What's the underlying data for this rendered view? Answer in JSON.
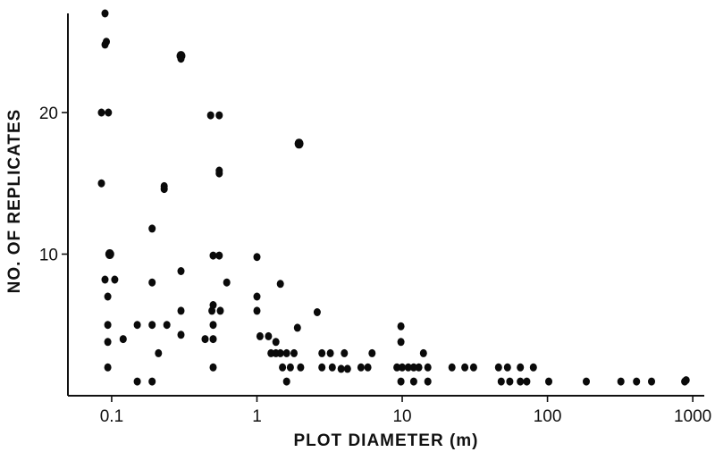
{
  "chart_data": {
    "type": "scatter",
    "xlabel": "PLOT DIAMETER (m)",
    "ylabel": "NO. OF REPLICATES",
    "x_scale": "log",
    "xlim": [
      0.05,
      1200
    ],
    "ylim": [
      0,
      27
    ],
    "x_ticks": [
      {
        "value": 0.1,
        "label": "0.1"
      },
      {
        "value": 1,
        "label": "1"
      },
      {
        "value": 10,
        "label": "10"
      },
      {
        "value": 100,
        "label": "100"
      },
      {
        "value": 1000,
        "label": "1000"
      }
    ],
    "y_ticks": [
      {
        "value": 10,
        "label": "10"
      },
      {
        "value": 20,
        "label": "20"
      }
    ],
    "grid": false,
    "points": [
      [
        0.09,
        27
      ],
      [
        0.092,
        25
      ],
      [
        0.09,
        24.8
      ],
      [
        0.3,
        24
      ],
      [
        0.3,
        23.8
      ],
      [
        0.085,
        20
      ],
      [
        0.095,
        20
      ],
      [
        0.48,
        19.8
      ],
      [
        0.55,
        19.8
      ],
      [
        1.95,
        17.8
      ],
      [
        0.55,
        15.9
      ],
      [
        0.55,
        15.7
      ],
      [
        0.085,
        15
      ],
      [
        0.23,
        14.8
      ],
      [
        0.23,
        14.6
      ],
      [
        0.19,
        11.8
      ],
      [
        0.097,
        10
      ],
      [
        0.5,
        9.9
      ],
      [
        0.55,
        9.9
      ],
      [
        1.0,
        9.8
      ],
      [
        0.3,
        8.8
      ],
      [
        0.09,
        8.2
      ],
      [
        0.105,
        8.2
      ],
      [
        0.19,
        8.0
      ],
      [
        0.62,
        8.0
      ],
      [
        1.45,
        7.9
      ],
      [
        0.094,
        7.0
      ],
      [
        1.0,
        7.0
      ],
      [
        0.5,
        6.4
      ],
      [
        0.49,
        6.0
      ],
      [
        0.56,
        6.0
      ],
      [
        0.3,
        6.0
      ],
      [
        1.0,
        6.0
      ],
      [
        2.6,
        5.9
      ],
      [
        0.094,
        5.0
      ],
      [
        0.15,
        5.0
      ],
      [
        0.19,
        5.0
      ],
      [
        0.24,
        5.0
      ],
      [
        0.5,
        5.0
      ],
      [
        1.9,
        4.8
      ],
      [
        9.8,
        4.9
      ],
      [
        0.3,
        4.3
      ],
      [
        1.05,
        4.2
      ],
      [
        1.2,
        4.2
      ],
      [
        0.094,
        3.8
      ],
      [
        0.12,
        4.0
      ],
      [
        0.44,
        4.0
      ],
      [
        0.5,
        4.0
      ],
      [
        1.35,
        3.8
      ],
      [
        9.8,
        3.8
      ],
      [
        0.21,
        3.0
      ],
      [
        1.25,
        3.0
      ],
      [
        1.35,
        3.0
      ],
      [
        1.45,
        3.0
      ],
      [
        1.6,
        3.0
      ],
      [
        1.8,
        3.0
      ],
      [
        2.8,
        3.0
      ],
      [
        3.2,
        3.0
      ],
      [
        4.0,
        3.0
      ],
      [
        6.2,
        3.0
      ],
      [
        14,
        3.0
      ],
      [
        0.094,
        2.0
      ],
      [
        0.5,
        2.0
      ],
      [
        1.5,
        2.0
      ],
      [
        1.7,
        2.0
      ],
      [
        2.0,
        2.0
      ],
      [
        2.8,
        2.0
      ],
      [
        3.3,
        2.0
      ],
      [
        3.8,
        1.9
      ],
      [
        4.2,
        1.9
      ],
      [
        5.2,
        2.0
      ],
      [
        5.8,
        2.0
      ],
      [
        9.2,
        2.0
      ],
      [
        10,
        2.0
      ],
      [
        11,
        2.0
      ],
      [
        12,
        2.0
      ],
      [
        13,
        2.0
      ],
      [
        15,
        2.0
      ],
      [
        22,
        2.0
      ],
      [
        27,
        2.0
      ],
      [
        31,
        2.0
      ],
      [
        46,
        2.0
      ],
      [
        53,
        2.0
      ],
      [
        65,
        2.0
      ],
      [
        80,
        2.0
      ],
      [
        0.15,
        1.0
      ],
      [
        0.19,
        1.0
      ],
      [
        1.6,
        1.0
      ],
      [
        9.8,
        1.0
      ],
      [
        12,
        1.0
      ],
      [
        15,
        1.0
      ],
      [
        48,
        1.0
      ],
      [
        55,
        1.0
      ],
      [
        65,
        1.0
      ],
      [
        72,
        1.0
      ],
      [
        102,
        1.0
      ],
      [
        185,
        1.0
      ],
      [
        320,
        1.0
      ],
      [
        410,
        1.0
      ],
      [
        520,
        1.0
      ],
      [
        880,
        1.0
      ],
      [
        900,
        1.1
      ]
    ],
    "big_points": [
      [
        0.09,
        25
      ],
      [
        0.3,
        24
      ],
      [
        0.23,
        14.7
      ],
      [
        0.55,
        15.8
      ],
      [
        0.097,
        10
      ],
      [
        1.95,
        17.8
      ]
    ]
  }
}
